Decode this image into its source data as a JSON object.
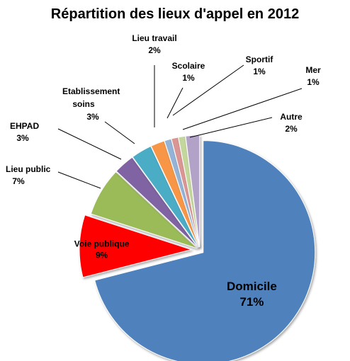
{
  "chart_data": {
    "type": "pie",
    "title": "Répartition des lieux d'appel en 2012",
    "exploded": true,
    "slices": [
      {
        "label": "Domicile",
        "value": 71,
        "pct_text": "71%",
        "color": "#4F81BD"
      },
      {
        "label": "Voie publique",
        "value": 9,
        "pct_text": "9%",
        "color": "#FF0000"
      },
      {
        "label": "Lieu public",
        "value": 7,
        "pct_text": "7%",
        "color": "#9BBB59"
      },
      {
        "label": "EHPAD",
        "value": 3,
        "pct_text": "3%",
        "color": "#8064A2"
      },
      {
        "label": "Etablissement soins",
        "value": 3,
        "pct_text": "3%",
        "color": "#4BACC6"
      },
      {
        "label": "Lieu travail",
        "value": 2,
        "pct_text": "2%",
        "color": "#F79646"
      },
      {
        "label": "Scolaire",
        "value": 1,
        "pct_text": "1%",
        "color": "#95B3D7"
      },
      {
        "label": "Sportif",
        "value": 1,
        "pct_text": "1%",
        "color": "#D99694"
      },
      {
        "label": "Mer",
        "value": 1,
        "pct_text": "1%",
        "color": "#C3D69B"
      },
      {
        "label": "Autre",
        "value": 2,
        "pct_text": "2%",
        "color": "#B3A2C7"
      }
    ]
  }
}
